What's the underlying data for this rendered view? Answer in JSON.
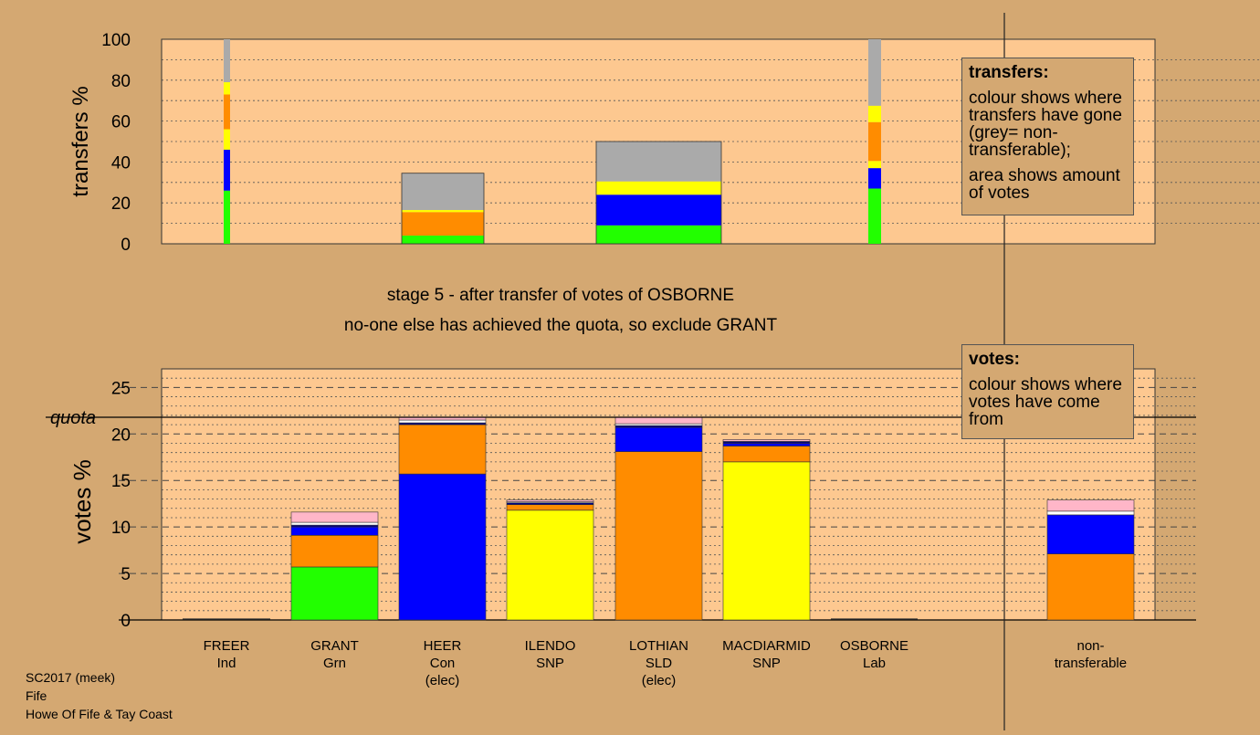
{
  "colors": {
    "page_bg": "#d4a872",
    "plot_bg": "#fdc890",
    "green": "#22ff00",
    "blue": "#0000ff",
    "orange": "#ff8c00",
    "yellow": "#ffff00",
    "grey": "#aaaaaa",
    "pink": "#ffb6c8",
    "white": "#ffffff",
    "navy": "#000080"
  },
  "caption": {
    "line1": "stage 5 - after transfer of votes of OSBORNE",
    "line2": "no-one else has achieved the quota, so exclude GRANT"
  },
  "legend_transfers": {
    "title": "transfers:",
    "para1": "colour shows where transfers have gone (grey= non-transferable);",
    "para2": "area shows amount of votes"
  },
  "legend_votes": {
    "title": "votes:",
    "para1": "colour shows where votes have come from"
  },
  "footer": {
    "line1": "SC2017 (meek)",
    "line2": "Fife",
    "line3": "Howe Of Fife & Tay Coast"
  },
  "chart_data": [
    {
      "type": "bar",
      "name": "transfers",
      "ylabel": "transfers %",
      "ylim": [
        0,
        100
      ],
      "yticks": [
        0,
        20,
        40,
        60,
        80,
        100
      ],
      "grid": true,
      "legend_placement": "top-right",
      "bars": [
        {
          "label": "FREER",
          "segments": [
            {
              "color": "green",
              "value": 26
            },
            {
              "color": "blue",
              "value": 20
            },
            {
              "color": "yellow",
              "value": 10
            },
            {
              "color": "orange",
              "value": 17
            },
            {
              "color": "yellow",
              "value": 6
            },
            {
              "color": "grey",
              "value": 21
            }
          ]
        },
        {
          "label": "HEER",
          "segments": [
            {
              "color": "green",
              "value": 4
            },
            {
              "color": "orange",
              "value": 11.5
            },
            {
              "color": "yellow",
              "value": 1
            },
            {
              "color": "grey",
              "value": 18
            }
          ]
        },
        {
          "label": "LOTHIAN",
          "segments": [
            {
              "color": "green",
              "value": 9
            },
            {
              "color": "blue",
              "value": 15
            },
            {
              "color": "yellow",
              "value": 6.5
            },
            {
              "color": "grey",
              "value": 19.5
            }
          ]
        },
        {
          "label": "OSBORNE",
          "segments": [
            {
              "color": "green",
              "value": 27
            },
            {
              "color": "blue",
              "value": 10
            },
            {
              "color": "yellow",
              "value": 3.5
            },
            {
              "color": "orange",
              "value": 19
            },
            {
              "color": "yellow",
              "value": 8
            },
            {
              "color": "grey",
              "value": 32.5
            }
          ]
        }
      ]
    },
    {
      "type": "bar",
      "name": "votes",
      "ylabel": "votes %",
      "ylim": [
        0,
        27
      ],
      "yticks": [
        0,
        5,
        10,
        15,
        20,
        25
      ],
      "quota": 21.8,
      "quota_label": "quota",
      "grid": true,
      "legend_placement": "top-right",
      "bars": [
        {
          "name": "FREER",
          "party": "Ind",
          "status": "",
          "segments": []
        },
        {
          "name": "GRANT",
          "party": "Grn",
          "status": "",
          "segments": [
            {
              "color": "green",
              "value": 5.7
            },
            {
              "color": "orange",
              "value": 3.4
            },
            {
              "color": "blue",
              "value": 0.9
            },
            {
              "color": "navy",
              "value": 0.2
            },
            {
              "color": "white",
              "value": 0.3
            },
            {
              "color": "pink",
              "value": 1.1
            }
          ]
        },
        {
          "name": "HEER",
          "party": "Con",
          "status": "(elec)",
          "segments": [
            {
              "color": "blue",
              "value": 15.7
            },
            {
              "color": "orange",
              "value": 5.3
            },
            {
              "color": "navy",
              "value": 0.2
            },
            {
              "color": "white",
              "value": 0.3
            },
            {
              "color": "pink",
              "value": 0.3
            }
          ]
        },
        {
          "name": "ILENDO",
          "party": "SNP",
          "status": "",
          "segments": [
            {
              "color": "yellow",
              "value": 11.8
            },
            {
              "color": "orange",
              "value": 0.6
            },
            {
              "color": "navy",
              "value": 0.2
            },
            {
              "color": "white",
              "value": 0.1
            },
            {
              "color": "pink",
              "value": 0.2
            }
          ]
        },
        {
          "name": "LOTHIAN",
          "party": "SLD",
          "status": "(elec)",
          "segments": [
            {
              "color": "orange",
              "value": 18.1
            },
            {
              "color": "blue",
              "value": 2.6
            },
            {
              "color": "navy",
              "value": 0.2
            },
            {
              "color": "white",
              "value": 0.2
            },
            {
              "color": "pink",
              "value": 0.7
            }
          ]
        },
        {
          "name": "MACDIARMID",
          "party": "SNP",
          "status": "",
          "segments": [
            {
              "color": "yellow",
              "value": 17
            },
            {
              "color": "orange",
              "value": 1.7
            },
            {
              "color": "blue",
              "value": 0.3
            },
            {
              "color": "navy",
              "value": 0.2
            },
            {
              "color": "pink",
              "value": 0.2
            }
          ]
        },
        {
          "name": "OSBORNE",
          "party": "Lab",
          "status": "",
          "segments": []
        },
        {
          "name": "non-",
          "party": "transferable",
          "status": "",
          "segments": [
            {
              "color": "orange",
              "value": 7.1
            },
            {
              "color": "blue",
              "value": 4.2
            },
            {
              "color": "white",
              "value": 0.4
            },
            {
              "color": "pink",
              "value": 1.2
            }
          ]
        }
      ]
    }
  ]
}
